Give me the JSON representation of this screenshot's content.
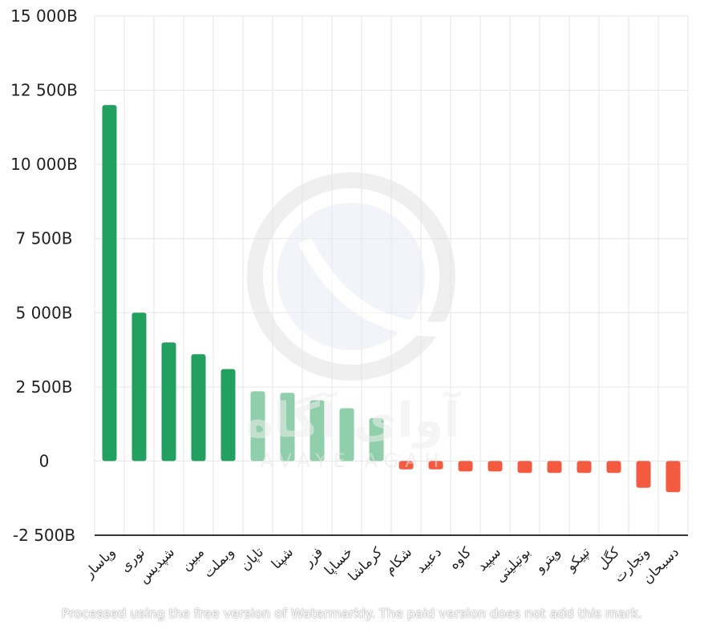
{
  "chart_data": {
    "type": "bar",
    "categories": [
      "وپاسار",
      "نوری",
      "شپدیس",
      "مبین",
      "وبملت",
      "تاپان",
      "شپنا",
      "فزر",
      "خساپا",
      "کرماشا",
      "شکام",
      "دعبید",
      "کاوه",
      "سپید",
      "بوتیلیتی",
      "وپترو",
      "تپیکو",
      "کگل",
      "وتجارت",
      "دسبحان"
    ],
    "values": [
      12000,
      5000,
      4000,
      3600,
      3100,
      2350,
      2300,
      2050,
      1780,
      1450,
      -280,
      -280,
      -350,
      -350,
      -400,
      -400,
      -400,
      -400,
      -900,
      -1050
    ],
    "ylim": [
      -2500,
      15000
    ],
    "yticks": [
      "15 000B",
      "12 500B",
      "10 000B",
      "7 500B",
      "5 000B",
      "2 500B",
      "0",
      "-2 500B"
    ],
    "grid": true,
    "colors": {
      "positive_strong": "#22a060",
      "positive_light": "#8fcfab",
      "negative_light": "#f4a796",
      "negative_strong": "#f45a3f"
    }
  },
  "watermark": {
    "logo_text": "آوای آگاه",
    "logo_subtext": "AVAYE AGAH",
    "notice": "Processed using the free version of Watermarkly. The paid version does not add this mark."
  }
}
